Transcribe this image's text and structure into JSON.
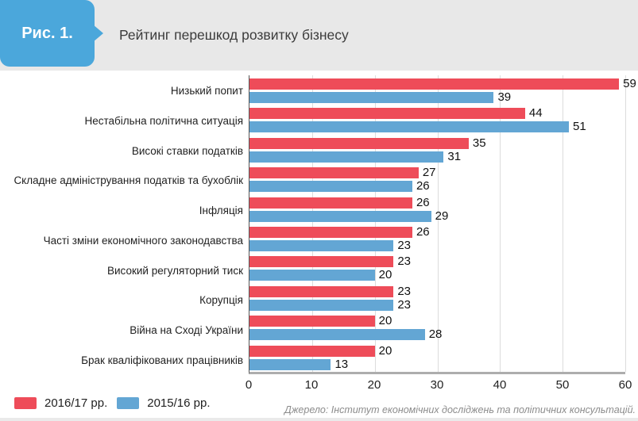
{
  "header": {
    "figure_label": "Рис. 1.",
    "title": "Рейтинг перешкод розвитку бізнесу"
  },
  "legend": [
    {
      "label": "2016/17 рр.",
      "color": "#ee4c59"
    },
    {
      "label": "2015/16 рр.",
      "color": "#63a6d4"
    }
  ],
  "source": "Джерело: Інститут економічних досліджень та політичних консультацій.",
  "colors": {
    "badge_blue": "#4ba7db",
    "header_bg": "#e8e8e8",
    "red_series": "#ee4c59",
    "blue_series": "#63a6d4",
    "gridline": "#dcdcdc",
    "axis_line": "#565656",
    "baseline": "#adadad"
  },
  "chart_data": {
    "type": "bar",
    "orientation": "horizontal",
    "title": "Рейтинг перешкод розвитку бізнесу",
    "categories": [
      "Низький попит",
      "Нестабільна політична ситуація",
      "Високі ставки податків",
      "Складне адміністрування податків та бухоблік",
      "Інфляція",
      "Часті зміни економічного законодавства",
      "Високий регуляторний тиск",
      "Корупція",
      "Війна на Сході України",
      "Брак кваліфікованих працівників"
    ],
    "series": [
      {
        "name": "2016/17 рр.",
        "color": "#ee4c59",
        "values": [
          59,
          44,
          35,
          27,
          26,
          26,
          23,
          23,
          20,
          20
        ]
      },
      {
        "name": "2015/16 рр.",
        "color": "#63a6d4",
        "values": [
          39,
          51,
          31,
          26,
          29,
          23,
          20,
          23,
          28,
          13
        ]
      }
    ],
    "xlabel": "",
    "ylabel": "",
    "xlim": [
      0,
      60
    ],
    "xticks": [
      0,
      10,
      20,
      30,
      40,
      50,
      60
    ],
    "grid": true,
    "value_labels": true,
    "legend_position": "bottom-left"
  }
}
